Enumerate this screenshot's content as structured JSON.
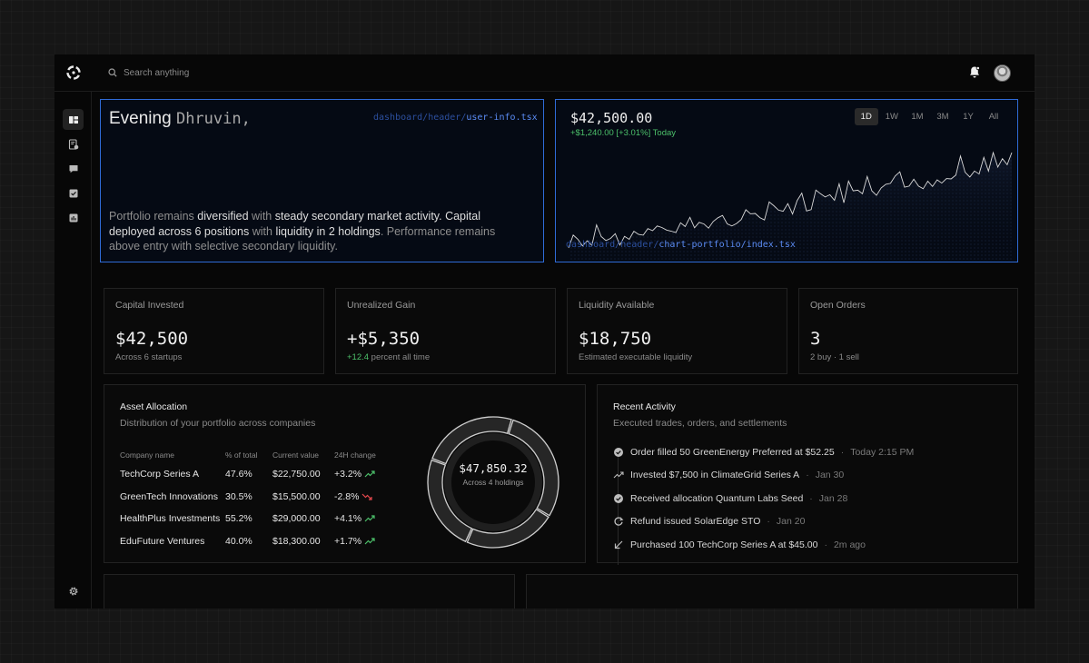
{
  "search": {
    "placeholder": "Search anything"
  },
  "sidebar": {
    "items": [
      {
        "name": "dashboard",
        "icon": "dashboard-icon",
        "active": true
      },
      {
        "name": "reports",
        "icon": "document-check-icon",
        "active": false
      },
      {
        "name": "messages",
        "icon": "chat-icon",
        "active": false
      },
      {
        "name": "tasks",
        "icon": "checkbox-icon",
        "active": false
      },
      {
        "name": "analytics",
        "icon": "bar-chart-icon",
        "active": false
      }
    ],
    "settings_icon": "gear-icon"
  },
  "user_info": {
    "greeting": "Evening",
    "name": "Dhruvin,",
    "path_prefix": "dashboard/header/",
    "path_file": "user-info.tsx",
    "summary": {
      "p1": "Portfolio remains ",
      "h1": "diversified",
      "p2": " with ",
      "h2": "steady secondary market activity. Capital deployed across 6 positions",
      "p3": " with ",
      "h3": "liquidity in 2 holdings",
      "p4": ". Performance remains above entry with selective secondary liquidity."
    }
  },
  "portfolio_chart": {
    "price": "$42,500.00",
    "change": "+$1,240.00 [+3.01%] Today",
    "ranges": [
      "1D",
      "1W",
      "1M",
      "3M",
      "1Y",
      "All"
    ],
    "active_range": "1D",
    "path_prefix": "dashboard/header/",
    "path_file": "chart-portfolio/index.tsx"
  },
  "stats": [
    {
      "title": "Capital Invested",
      "value": "$42,500",
      "sub": "Across 6 startups"
    },
    {
      "title": "Unrealized Gain",
      "value": "+$5,350",
      "sub_green": "+12.4",
      "sub": " percent all time"
    },
    {
      "title": "Liquidity Available",
      "value": "$18,750",
      "sub": "Estimated executable liquidity"
    },
    {
      "title": "Open Orders",
      "value": "3",
      "sub": "2 buy · 1 sell"
    }
  ],
  "allocation": {
    "title": "Asset Allocation",
    "subtitle": "Distribution of your portfolio across companies",
    "columns": [
      "Company name",
      "% of total",
      "Current value",
      "24H change"
    ],
    "rows": [
      {
        "company": "TechCorp Series A",
        "pct": "47.6%",
        "value": "$22,750.00",
        "change": "+3.2%",
        "dir": "up"
      },
      {
        "company": "GreenTech Innovations",
        "pct": "30.5%",
        "value": "$15,500.00",
        "change": "-2.8%",
        "dir": "down"
      },
      {
        "company": "HealthPlus Investments",
        "pct": "55.2%",
        "value": "$29,000.00",
        "change": "+4.1%",
        "dir": "up"
      },
      {
        "company": "EduFuture Ventures",
        "pct": "40.0%",
        "value": "$18,300.00",
        "change": "+1.7%",
        "dir": "up"
      }
    ],
    "total": "$47,850.32",
    "total_sub": "Across 4 holdings",
    "colors": {
      "up": "#4cc06a",
      "down": "#e5484d"
    }
  },
  "activity": {
    "title": "Recent Activity",
    "subtitle": "Executed trades, orders, and settlements",
    "items": [
      {
        "icon": "check-circle-icon",
        "text": "Order filled 50 GreenEnergy Preferred at $52.25",
        "time": "Today 2:15 PM"
      },
      {
        "icon": "trend-up-icon",
        "text": "Invested $7,500 in ClimateGrid Series A",
        "time": "Jan 30"
      },
      {
        "icon": "check-circle-icon",
        "text": "Received allocation Quantum Labs Seed",
        "time": "Jan 28"
      },
      {
        "icon": "refresh-icon",
        "text": "Refund issued SolarEdge STO",
        "time": "Jan 20"
      },
      {
        "icon": "arrow-down-left-icon",
        "text": "Purchased 100 TechCorp Series A at $45.00",
        "time": "2m ago"
      }
    ]
  }
}
